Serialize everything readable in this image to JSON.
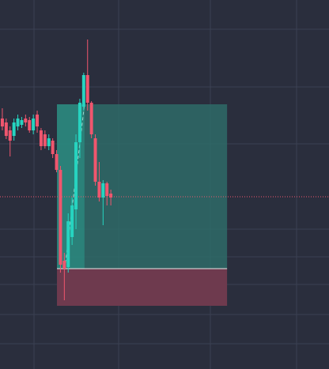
{
  "chart_data": {
    "type": "candlestick",
    "x": [
      0,
      1,
      2,
      3,
      4,
      5,
      6,
      7,
      8,
      9,
      10,
      11,
      12,
      13,
      14,
      15,
      16,
      17,
      18,
      19,
      20,
      21,
      22,
      23,
      24,
      25,
      26,
      27,
      28
    ],
    "open": [
      317,
      312,
      302,
      295,
      307,
      309,
      317,
      315,
      302,
      322,
      302,
      297,
      282,
      289,
      272,
      252,
      137,
      129,
      167,
      202,
      287,
      332,
      372,
      337,
      292,
      237,
      217,
      235,
      222
    ],
    "high": [
      330,
      317,
      307,
      317,
      322,
      319,
      322,
      319,
      322,
      327,
      305,
      302,
      297,
      292,
      277,
      257,
      147,
      197,
      217,
      297,
      342,
      375,
      417,
      339,
      297,
      262,
      239,
      237,
      227
    ],
    "low": [
      302,
      291,
      269,
      289,
      302,
      305,
      307,
      299,
      297,
      299,
      277,
      279,
      277,
      267,
      249,
      122,
      87,
      122,
      157,
      177,
      267,
      327,
      327,
      292,
      232,
      212,
      182,
      207,
      207
    ],
    "close": [
      307,
      295,
      289,
      312,
      317,
      315,
      312,
      302,
      317,
      307,
      282,
      282,
      292,
      272,
      252,
      132,
      127,
      187,
      207,
      287,
      337,
      372,
      337,
      297,
      237,
      217,
      235,
      219,
      217
    ],
    "up_color": "#26d4c0",
    "down_color": "#f0566e",
    "xlim": [
      -0.6,
      84.3
    ],
    "ylim": [
      0,
      467
    ],
    "last_price": 218,
    "position": {
      "x_start": 14.1,
      "x_now": 21.2,
      "x_end": 58,
      "entry": 127,
      "target": 335,
      "stop": 80
    }
  }
}
